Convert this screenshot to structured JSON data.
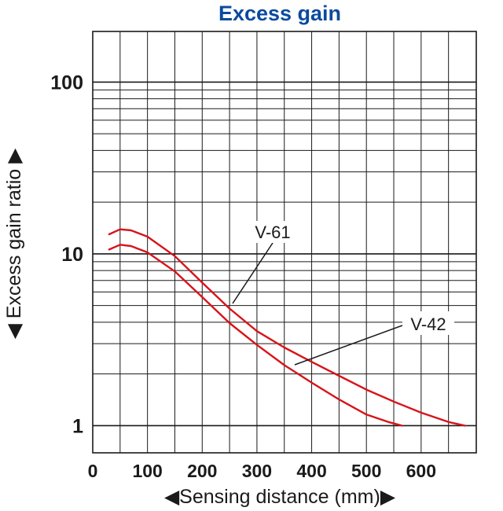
{
  "chart_data": {
    "type": "line",
    "title": "Excess gain",
    "xlabel": "Sensing distance (mm)",
    "ylabel": "Excess gain ratio",
    "xlim": [
      0,
      700
    ],
    "ylim": [
      0.75,
      200
    ],
    "yscale": "log",
    "x_ticks": [
      0,
      100,
      200,
      300,
      400,
      500,
      600
    ],
    "x_tick_labels": [
      "0",
      "100",
      "200",
      "300",
      "400",
      "500",
      "600"
    ],
    "y_ticks": [
      1,
      10,
      100
    ],
    "y_tick_labels": [
      "1",
      "10",
      "100"
    ],
    "grid": true,
    "series": [
      {
        "name": "V-61",
        "x": [
          30,
          50,
          70,
          100,
          150,
          200,
          250,
          300,
          350,
          400,
          450,
          500,
          550,
          600,
          650,
          680
        ],
        "y": [
          13.0,
          13.9,
          13.7,
          12.6,
          9.7,
          6.8,
          4.8,
          3.55,
          2.85,
          2.35,
          1.95,
          1.62,
          1.38,
          1.19,
          1.05,
          1.0
        ]
      },
      {
        "name": "V-42",
        "x": [
          30,
          50,
          70,
          100,
          150,
          200,
          250,
          300,
          350,
          400,
          450,
          500,
          540,
          565
        ],
        "y": [
          10.6,
          11.3,
          11.1,
          10.2,
          7.9,
          5.6,
          3.95,
          2.95,
          2.25,
          1.78,
          1.42,
          1.16,
          1.05,
          1.0
        ]
      }
    ],
    "annotations": [
      "V-61",
      "V-42"
    ],
    "colors": {
      "line": "#d7141a",
      "title": "#0a4a9f",
      "grid": "#1a1a1a",
      "text": "#1a1a1a"
    },
    "arrow_glyphs": {
      "left": "◀",
      "right": "▶"
    }
  }
}
